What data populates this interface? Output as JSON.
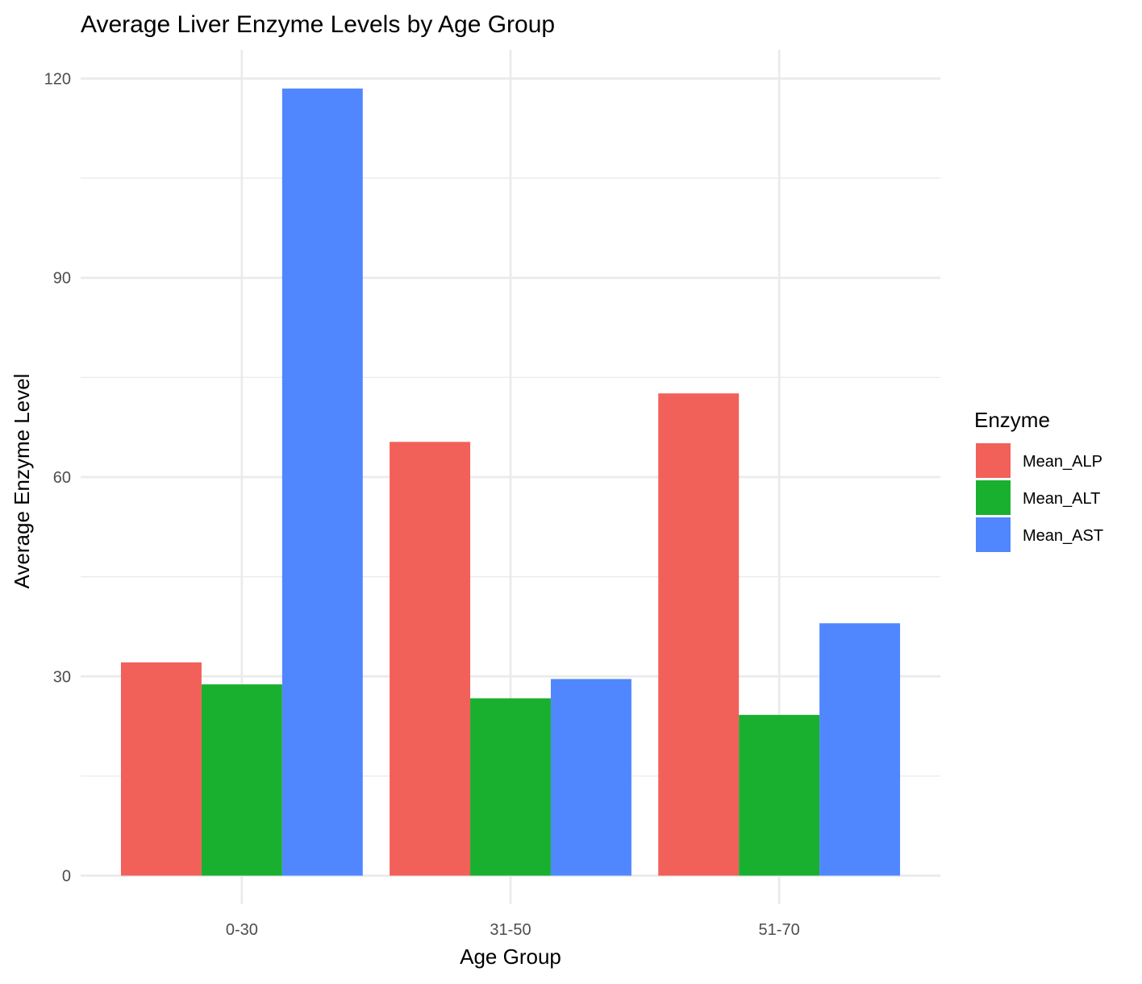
{
  "chart_data": {
    "type": "bar",
    "title": "Average Liver Enzyme Levels by Age Group",
    "xlabel": "Age Group",
    "ylabel": "Average Enzyme Level",
    "categories": [
      "0-30",
      "31-50",
      "51-70"
    ],
    "series": [
      {
        "name": "Mean_ALP",
        "color": "#F2605A",
        "values": [
          32.1,
          65.3,
          72.6
        ]
      },
      {
        "name": "Mean_ALT",
        "color": "#1AB02F",
        "values": [
          28.8,
          26.7,
          24.2
        ]
      },
      {
        "name": "Mean_AST",
        "color": "#5087FF",
        "values": [
          118.5,
          29.6,
          38.0
        ]
      }
    ],
    "ylim": [
      -4.3,
      124.3
    ],
    "yticks": [
      0,
      30,
      60,
      90,
      120
    ],
    "grid": true,
    "legend": {
      "title": "Enzyme",
      "position": "right"
    },
    "colors": {
      "grid": "#EBEBEB",
      "text": "#000000",
      "tick_text": "#4D4D4D"
    }
  }
}
